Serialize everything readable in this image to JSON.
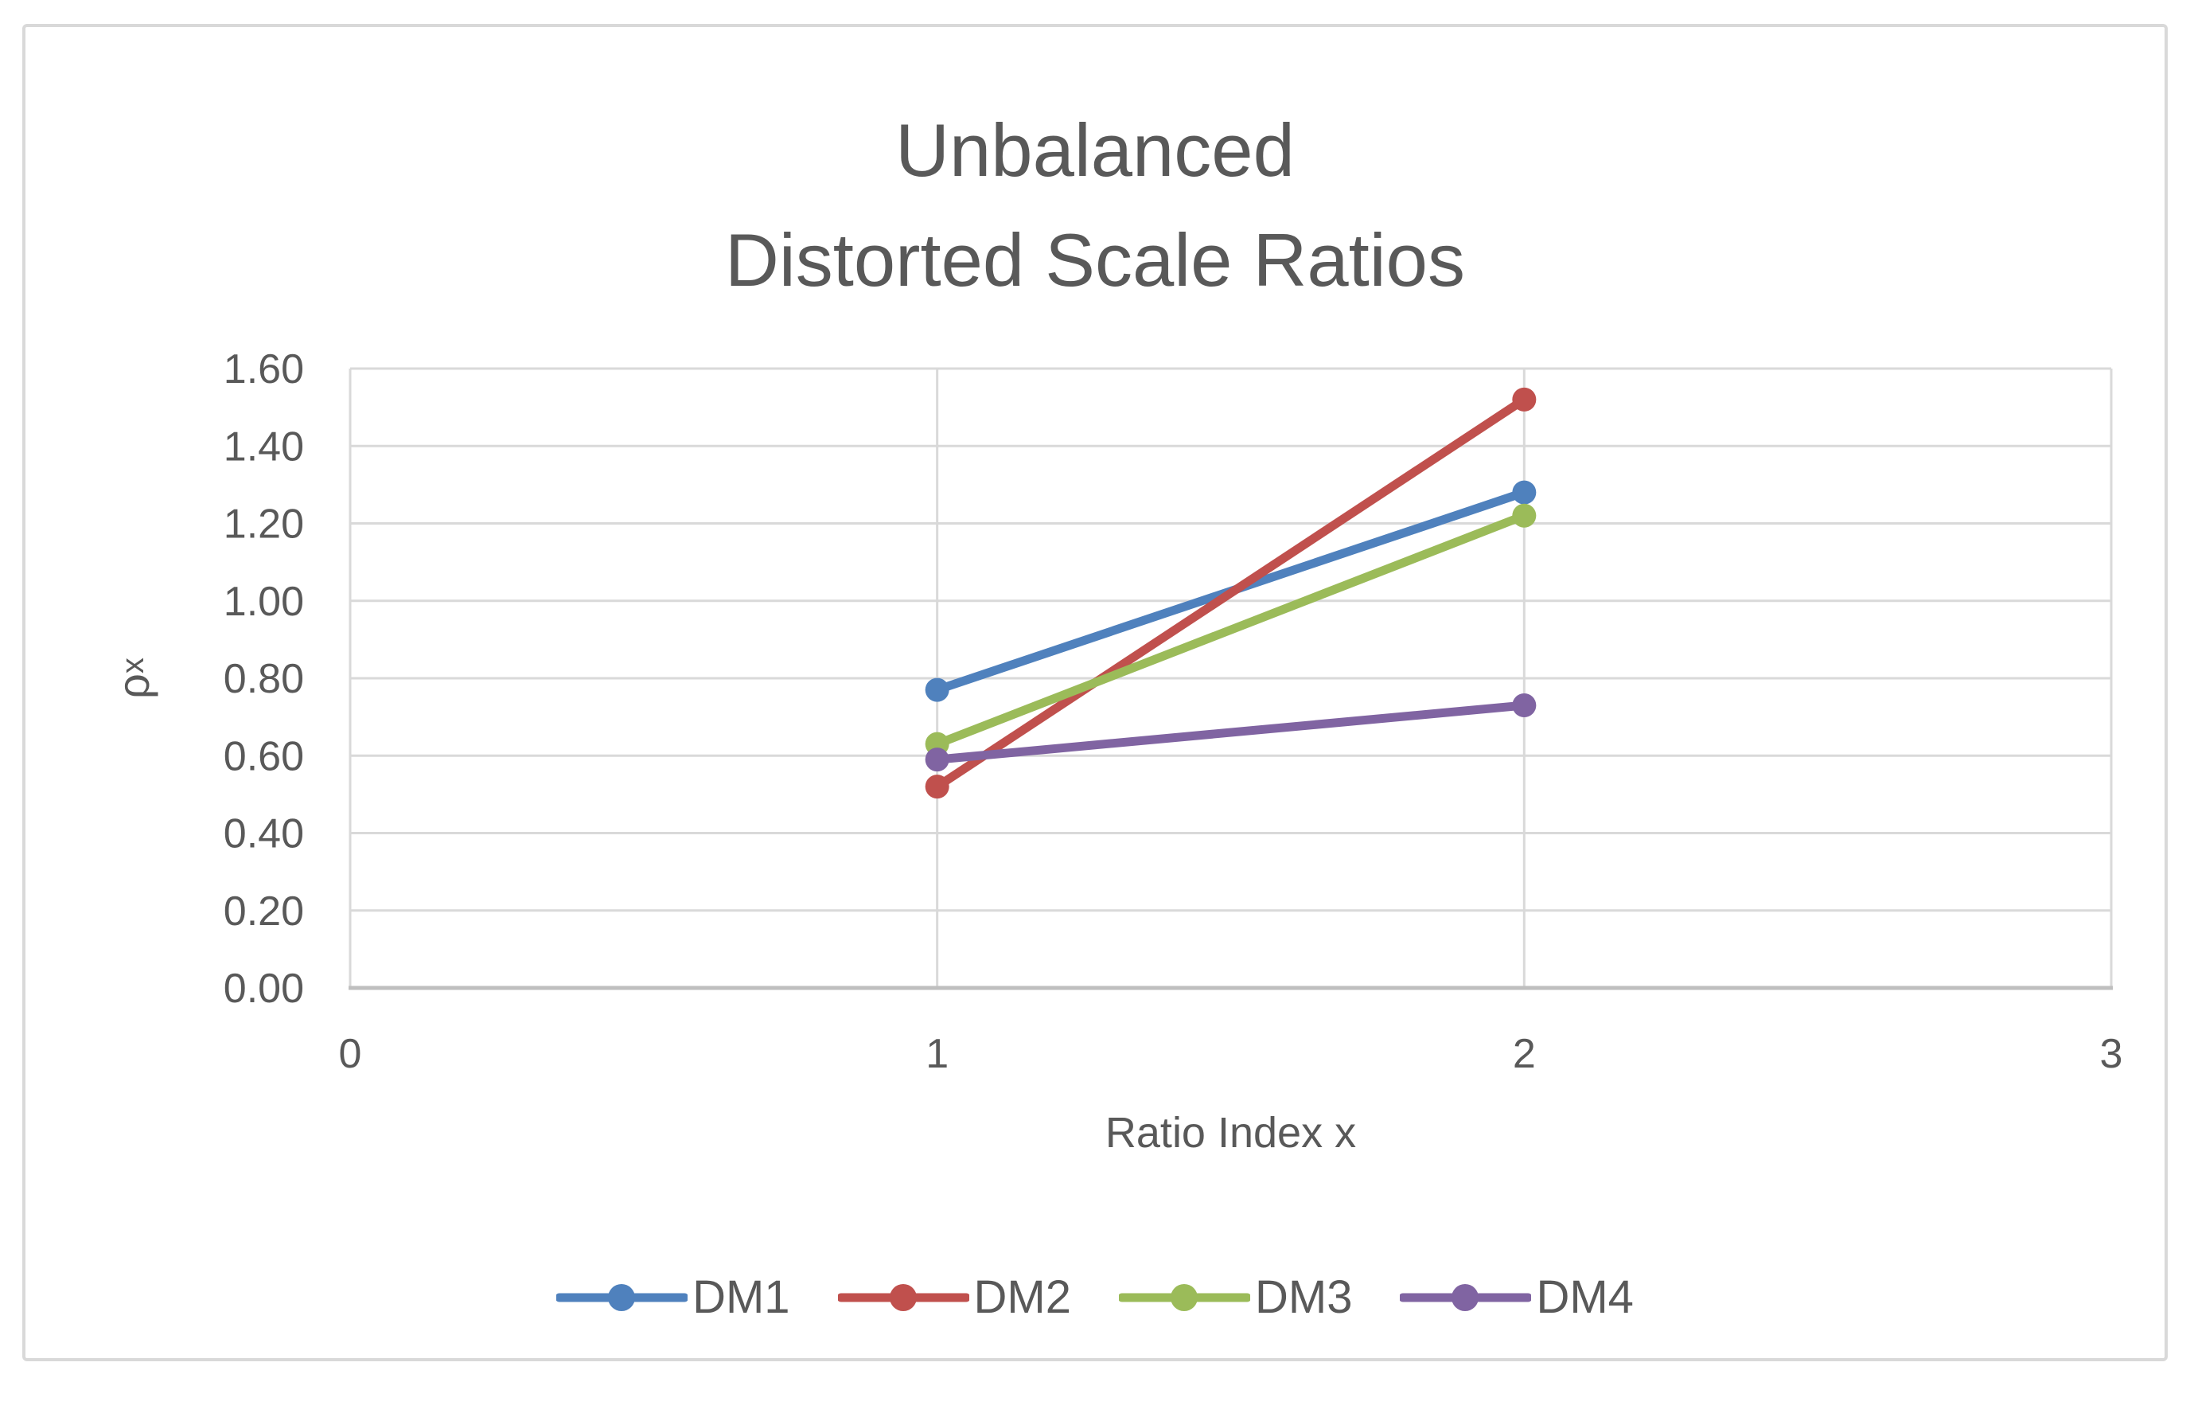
{
  "chart_data": {
    "type": "line",
    "title": "Unbalanced\nDistorted Scale Ratios",
    "title_lines": [
      "Unbalanced",
      "Distorted Scale Ratios"
    ],
    "xlabel": "Ratio Index x",
    "ylabel": "ρx",
    "ylabel_main": "ρ",
    "ylabel_sub": "x",
    "xlim": [
      0,
      3
    ],
    "ylim": [
      0,
      1.6
    ],
    "xticks": [
      0,
      1,
      2,
      3
    ],
    "xtick_labels": [
      "0",
      "1",
      "2",
      "3"
    ],
    "yticks": [
      0,
      0.2,
      0.4,
      0.6,
      0.8,
      1.0,
      1.2,
      1.4,
      1.6
    ],
    "ytick_labels": [
      "0.00",
      "0.20",
      "0.40",
      "0.60",
      "0.80",
      "1.00",
      "1.20",
      "1.40",
      "1.60"
    ],
    "grid": true,
    "legend_position": "bottom",
    "marker": "circle",
    "x": [
      1,
      2
    ],
    "series": [
      {
        "name": "DM1",
        "color": "#4F81BD",
        "values": [
          0.77,
          1.28
        ]
      },
      {
        "name": "DM2",
        "color": "#C0504D",
        "values": [
          0.52,
          1.52
        ]
      },
      {
        "name": "DM3",
        "color": "#9BBB59",
        "values": [
          0.63,
          1.22
        ]
      },
      {
        "name": "DM4",
        "color": "#8064A2",
        "values": [
          0.59,
          0.73
        ]
      }
    ],
    "colors": {
      "text": "#595959",
      "gridline": "#D9D9D9",
      "axis_line": "#BFBFBF",
      "background": "#FFFFFF",
      "frame_border": "#D9D9D9"
    }
  }
}
